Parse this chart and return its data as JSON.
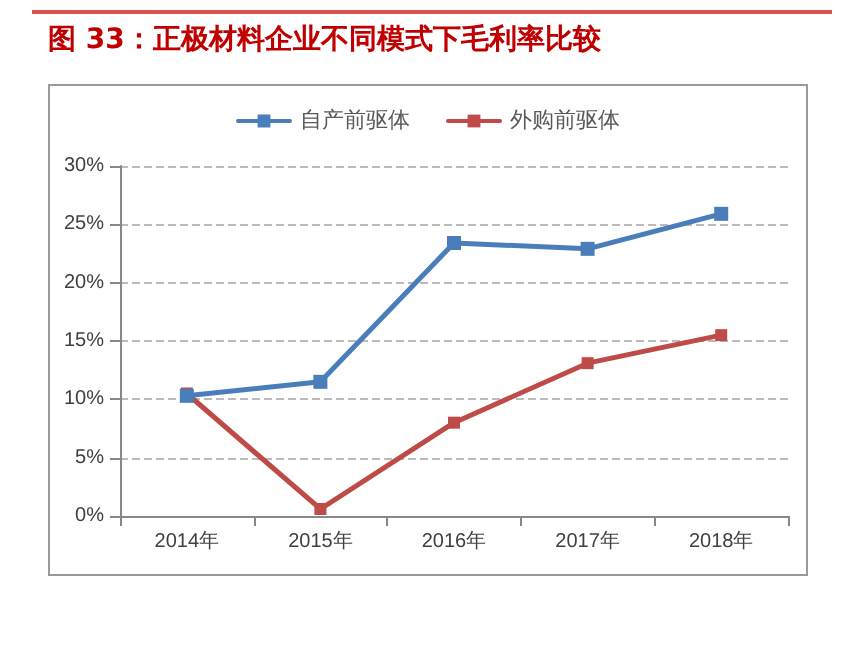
{
  "chart_data": {
    "type": "line",
    "title": "图 33：正极材料企业不同模式下毛利率比较",
    "categories": [
      "2014年",
      "2015年",
      "2016年",
      "2017年",
      "2018年"
    ],
    "series": [
      {
        "name": "自产前驱体",
        "color": "#4a7ebb",
        "values": [
          10.3,
          11.5,
          23.4,
          22.9,
          25.9
        ]
      },
      {
        "name": "外购前驱体",
        "color": "#be4b48",
        "values": [
          10.5,
          0.6,
          8.0,
          13.1,
          15.5
        ]
      }
    ],
    "ylim": [
      0,
      30
    ],
    "yticks": [
      {
        "value": 0,
        "label": "0%"
      },
      {
        "value": 5,
        "label": "5%"
      },
      {
        "value": 10,
        "label": "10%"
      },
      {
        "value": 15,
        "label": "15%"
      },
      {
        "value": 20,
        "label": "20%"
      },
      {
        "value": 25,
        "label": "25%"
      },
      {
        "value": 30,
        "label": "30%"
      }
    ],
    "grid": "y",
    "legend": "top",
    "marker": "square",
    "line_style": "solid"
  }
}
